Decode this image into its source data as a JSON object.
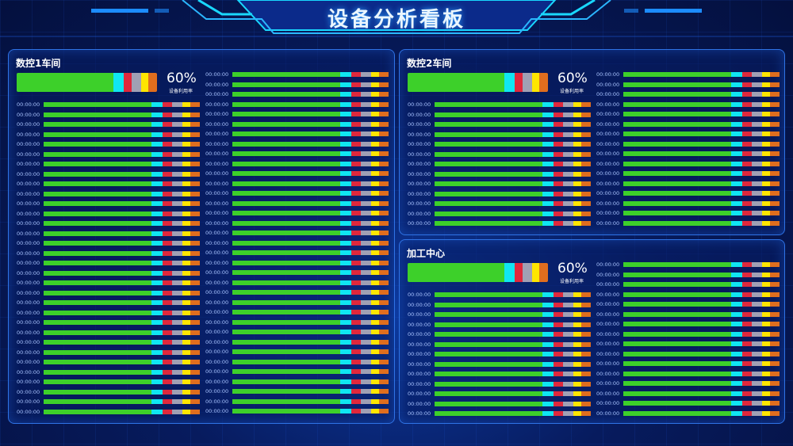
{
  "header": {
    "title": "设备分析看板"
  },
  "colors": {
    "green": "#3dd02a",
    "cyan": "#10e6f2",
    "red": "#e0283c",
    "grey": "#a0a0b4",
    "yellow": "#ffe600",
    "orange": "#e06e1e"
  },
  "status_shares": [
    0.69,
    0.07,
    0.06,
    0.07,
    0.05,
    0.06
  ],
  "panels": [
    {
      "title": "数控1车间",
      "utilization": "60%",
      "utilization_label": "设备利用率",
      "time_label": "00:00:00",
      "rows_left": 32,
      "rows_right": 35
    },
    {
      "title": "数控2车间",
      "utilization": "60%",
      "utilization_label": "设备利用率",
      "time_label": "00:00:00",
      "rows_left": 13,
      "rows_right": 16
    },
    {
      "title": "加工中心",
      "utilization": "60%",
      "utilization_label": "设备利用率",
      "time_label": "00:00:00",
      "rows_left": 13,
      "rows_right": 16
    }
  ]
}
